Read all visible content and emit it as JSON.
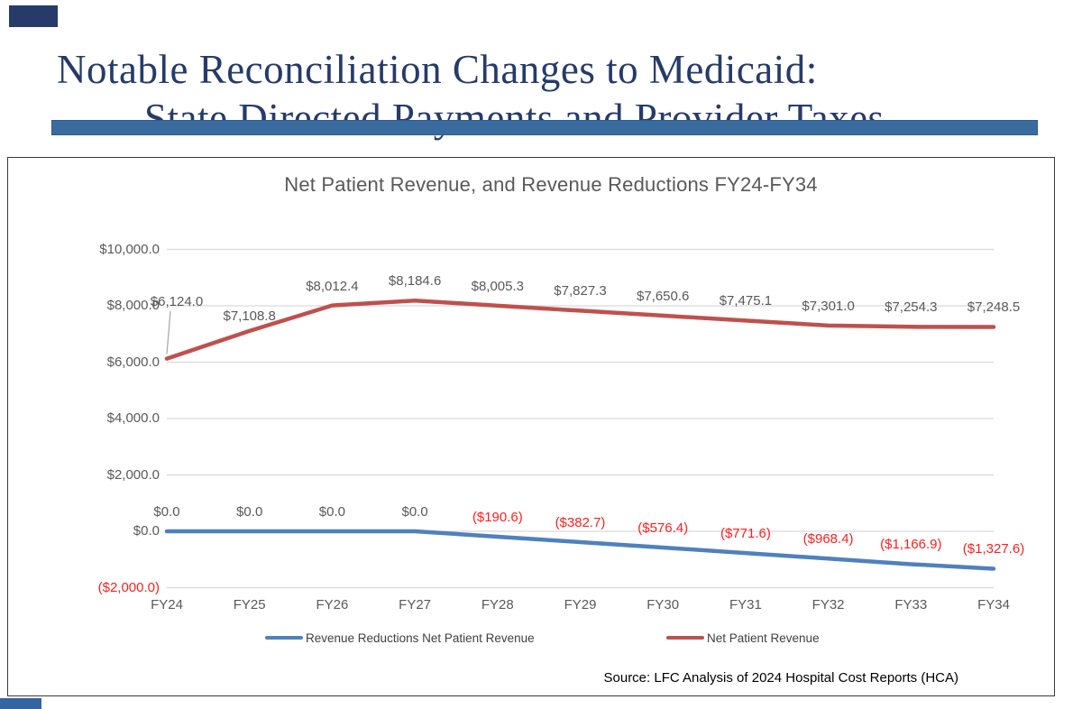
{
  "slide": {
    "title_line1": "Notable Reconciliation Changes to Medicaid:",
    "title_line2": "State Directed Payments and Provider Taxes"
  },
  "chart_data": {
    "type": "line",
    "title": "Net Patient Revenue, and Revenue Reductions FY24-FY34",
    "categories": [
      "FY24",
      "FY25",
      "FY26",
      "FY27",
      "FY28",
      "FY29",
      "FY30",
      "FY31",
      "FY32",
      "FY33",
      "FY34"
    ],
    "series": [
      {
        "name": "Revenue Reductions Net Patient Revenue",
        "color": "#4F81BD",
        "values": [
          0.0,
          0.0,
          0.0,
          0.0,
          -190.6,
          -382.7,
          -576.4,
          -771.6,
          -968.4,
          -1166.9,
          -1327.6
        ],
        "labels": [
          "$0.0",
          "$0.0",
          "$0.0",
          "$0.0",
          "($190.6)",
          "($382.7)",
          "($576.4)",
          "($771.6)",
          "($968.4)",
          "($1,166.9)",
          "($1,327.6)"
        ]
      },
      {
        "name": "Net Patient Revenue",
        "color": "#C0504D",
        "values": [
          6124.0,
          7108.8,
          8012.4,
          8184.6,
          8005.3,
          7827.3,
          7650.6,
          7475.1,
          7301.0,
          7254.3,
          7248.5
        ],
        "labels": [
          "$6,124.0",
          "$7,108.8",
          "$8,012.4",
          "$8,184.6",
          "$8,005.3",
          "$7,827.3",
          "$7,650.6",
          "$7,475.1",
          "$7,301.0",
          "$7,254.3",
          "$7,248.5"
        ]
      }
    ],
    "y_axis": {
      "range": [
        -2000,
        10000
      ],
      "ticks": [
        {
          "label": "$10,000.0",
          "value": 10000
        },
        {
          "label": "$8,000.0",
          "value": 8000
        },
        {
          "label": "$6,000.0",
          "value": 6000
        },
        {
          "label": "$4,000.0",
          "value": 4000
        },
        {
          "label": "$2,000.0",
          "value": 2000
        },
        {
          "label": "$0.0",
          "value": 0
        },
        {
          "label": "($2,000.0)",
          "value": -2000
        }
      ]
    },
    "grid": true,
    "legend_position": "bottom",
    "label_color_positive": "#595959",
    "label_color_negative": "#FF1F1F",
    "source": "Source: LFC Analysis of 2024 Hospital Cost Reports (HCA)"
  },
  "colors": {
    "title_text": "#263B69",
    "divider_bar": "#3A6B9E",
    "divider_border": "#2F5B8C",
    "corner_accent": "#3565A0",
    "chart_border": "#3A3A3A",
    "gridline": "#D9D9D9",
    "axis_text": "#595959",
    "legend_text": "#404040",
    "chart_title_text": "#595959",
    "source_text": "#000000",
    "leader_line": "#A6A6A6"
  }
}
